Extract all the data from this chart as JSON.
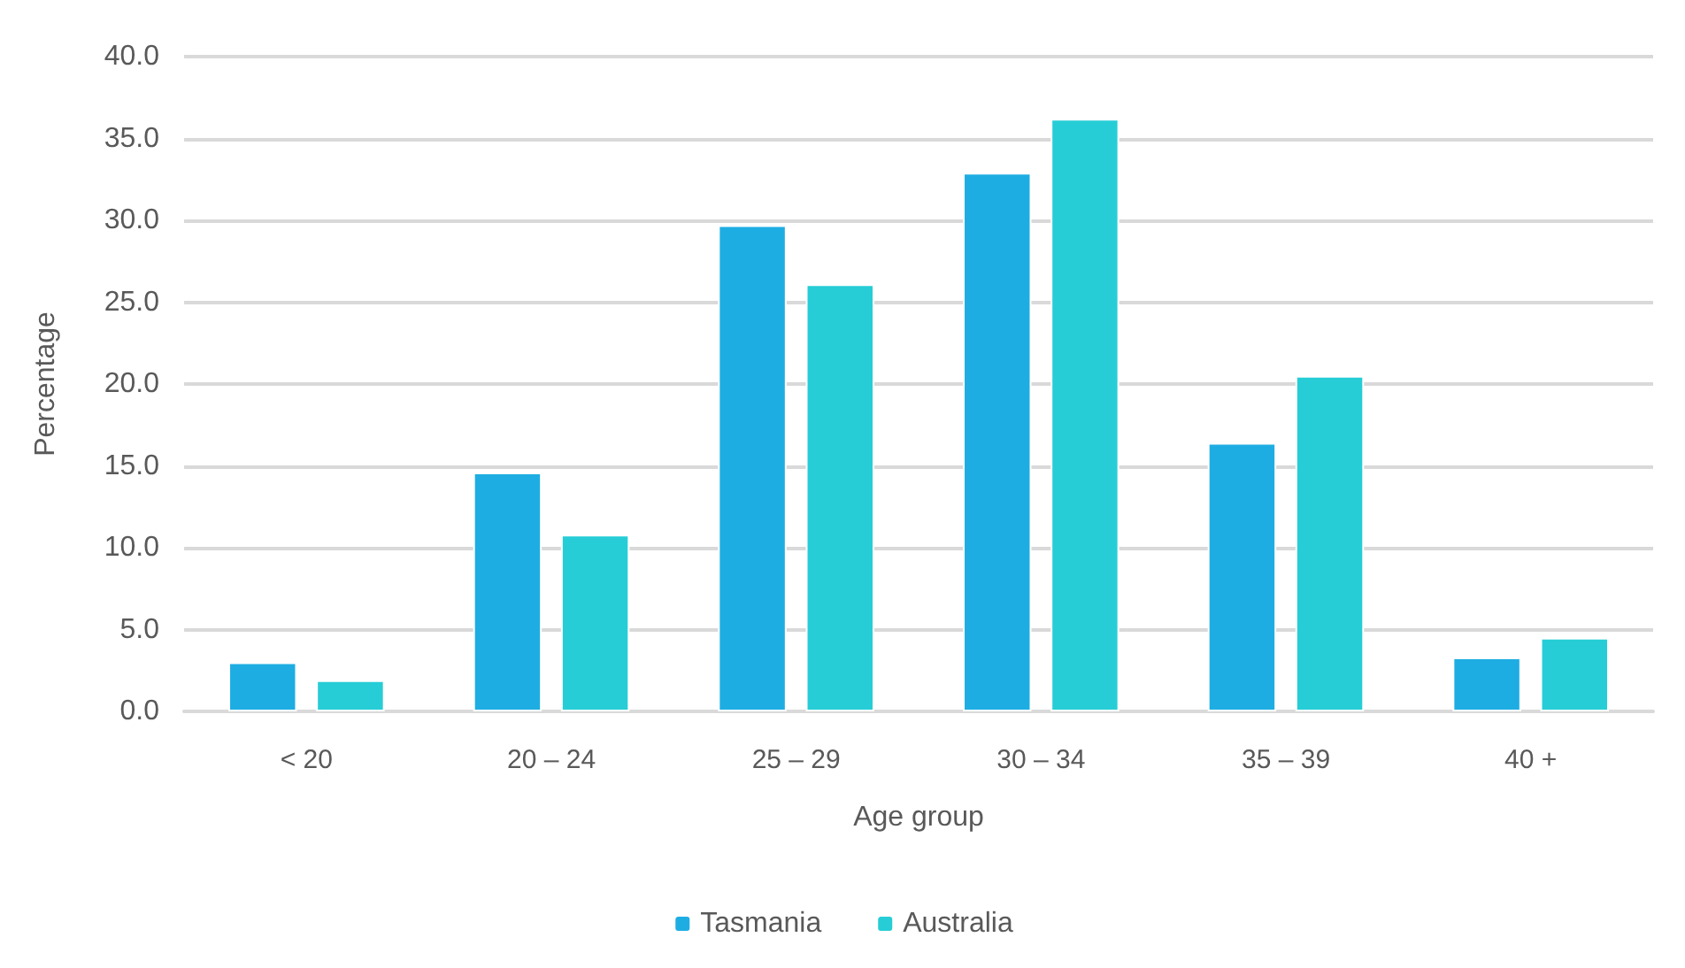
{
  "chart_data": {
    "type": "bar",
    "xlabel": "Age group",
    "ylabel": "Percentage",
    "categories": [
      "< 20",
      "20 – 24",
      "25 – 29",
      "30 – 34",
      "35 – 39",
      "40 +"
    ],
    "series": [
      {
        "name": "Tasmania",
        "color": "#1eade2",
        "values": [
          3.0,
          14.6,
          29.7,
          32.9,
          16.4,
          3.3
        ]
      },
      {
        "name": "Australia",
        "color": "#26cdd6",
        "values": [
          1.9,
          10.8,
          26.1,
          36.2,
          20.5,
          4.5
        ]
      }
    ],
    "ylim": [
      0,
      40
    ],
    "yticks": [
      {
        "value": 0,
        "label": "0.0"
      },
      {
        "value": 5,
        "label": "5.0"
      },
      {
        "value": 10,
        "label": "10.0"
      },
      {
        "value": 15,
        "label": "15.0"
      },
      {
        "value": 20,
        "label": "20.0"
      },
      {
        "value": 25,
        "label": "25.0"
      },
      {
        "value": 30,
        "label": "30.0"
      },
      {
        "value": 35,
        "label": "35.0"
      },
      {
        "value": 40,
        "label": "40.0"
      }
    ],
    "grid": "y",
    "legend": "bottom"
  }
}
